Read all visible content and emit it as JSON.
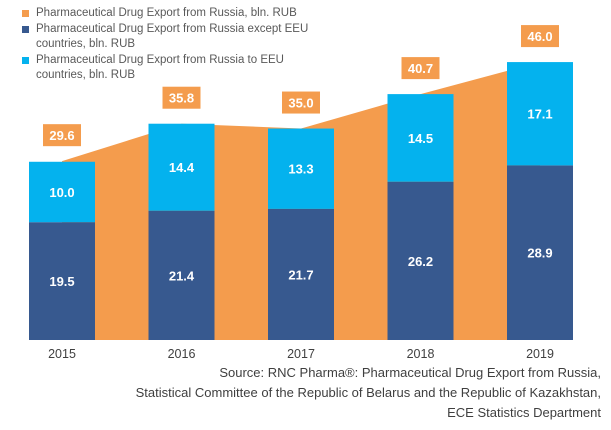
{
  "chart_data": {
    "type": "bar",
    "categories": [
      "2015",
      "2016",
      "2017",
      "2018",
      "2019"
    ],
    "series": [
      {
        "name": "Pharmaceutical Drug Export from Russia except EEU countries, bln. RUB",
        "color": "#37598f",
        "values": [
          19.5,
          21.4,
          21.7,
          26.2,
          28.9
        ]
      },
      {
        "name": "Pharmaceutical Drug Export from Russia to EEU countries, bln. RUB",
        "color": "#04b2ee",
        "values": [
          10.0,
          14.4,
          13.3,
          14.5,
          17.1
        ]
      }
    ],
    "area_series": {
      "name": "Pharmaceutical Drug Export from Russia, bln. RUB",
      "color": "#f49c4d",
      "values": [
        29.6,
        35.8,
        35.0,
        40.7,
        46.0
      ]
    },
    "stacked": true,
    "ylim": [
      0,
      48
    ],
    "label_formats": [
      "19.5",
      "21.4",
      "21.7",
      "26.2",
      "28.9",
      "10.0",
      "14.4",
      "13.3",
      "14.5",
      "17.1",
      "29.6",
      "35.8",
      "35.0",
      "40.7",
      "46.0"
    ],
    "grid": false,
    "legend_position": "top-left"
  },
  "legend": [
    {
      "label": "Pharmaceutical Drug Export from Russia, bln. RUB",
      "color": "#f49c4d"
    },
    {
      "label": "Pharmaceutical Drug Export from Russia except EEU countries, bln. RUB",
      "color": "#37598f"
    },
    {
      "label": "Pharmaceutical Drug Export from Russia to EEU countries, bln. RUB",
      "color": "#04b2ee"
    }
  ],
  "source": {
    "line1": "Source: RNC Pharma®: Pharmaceutical Drug Export from Russia,",
    "line2": "Statistical Committee of the Republic of Belarus and the Republic of Kazakhstan,",
    "line3": "ECE Statistics Department"
  }
}
